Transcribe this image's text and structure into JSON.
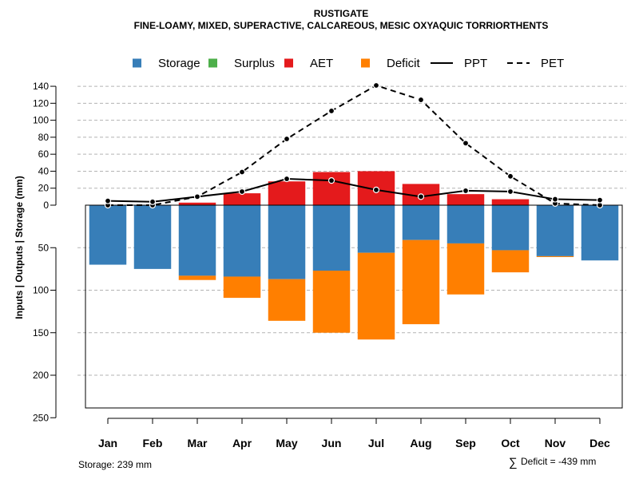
{
  "chart_data": {
    "type": "bar",
    "title": "RUSTIGATE",
    "subtitle": "FINE-LOAMY, MIXED, SUPERACTIVE, CALCAREOUS, MESIC OXYAQUIC TORRIORTHENTS",
    "ylabel": "Inputs | Outputs | Storage    (mm)",
    "categories": [
      "Jan",
      "Feb",
      "Mar",
      "Apr",
      "May",
      "Jun",
      "Jul",
      "Aug",
      "Sep",
      "Oct",
      "Nov",
      "Dec"
    ],
    "y_ticks_positive": [
      "140",
      "120",
      "100",
      "80",
      "60",
      "40",
      "20",
      "0"
    ],
    "y_ticks_negative": [
      "50",
      "100",
      "150",
      "200",
      "250"
    ],
    "ylim_top": 150,
    "ylim_bottom": -250,
    "legend": [
      {
        "key": "storage",
        "label": "Storage",
        "kind": "box",
        "color": "#377EB8"
      },
      {
        "key": "surplus",
        "label": "Surplus",
        "kind": "box",
        "color": "#4DAF4A"
      },
      {
        "key": "aet",
        "label": "AET",
        "kind": "box",
        "color": "#E41A1C"
      },
      {
        "key": "deficit",
        "label": "Deficit",
        "kind": "box",
        "color": "#FF7F00"
      },
      {
        "key": "ppt",
        "label": "PPT",
        "kind": "solid",
        "color": "#000000"
      },
      {
        "key": "pet",
        "label": "PET",
        "kind": "dashed",
        "color": "#000000"
      }
    ],
    "series": [
      {
        "name": "AET",
        "color": "#E41A1C",
        "values": [
          0,
          0,
          3,
          14,
          28,
          39,
          40,
          25,
          13,
          7,
          0,
          0
        ]
      },
      {
        "name": "Storage",
        "color": "#377EB8",
        "values": [
          70,
          75,
          83,
          84,
          87,
          77,
          56,
          41,
          45,
          53,
          60,
          65
        ]
      },
      {
        "name": "Deficit",
        "color": "#FF7F00",
        "values": [
          0,
          0,
          5,
          25,
          49,
          73,
          102,
          99,
          60,
          26,
          1,
          0
        ]
      },
      {
        "name": "Surplus",
        "color": "#4DAF4A",
        "values": [
          0,
          0,
          0,
          0,
          0,
          0,
          0,
          0,
          0,
          0,
          0,
          0
        ]
      },
      {
        "name": "PPT",
        "color": "#000000",
        "values": [
          5,
          4,
          10,
          16,
          31,
          29,
          18,
          10,
          17,
          16,
          7,
          6
        ]
      },
      {
        "name": "PET",
        "color": "#000000",
        "values": [
          0,
          0,
          10,
          39,
          78,
          111,
          141,
          124,
          73,
          34,
          2,
          0
        ]
      }
    ]
  },
  "footer": {
    "storage_text": "Storage: 239 mm",
    "deficit_symbol": "∑",
    "deficit_text": "Deficit = -439 mm"
  }
}
